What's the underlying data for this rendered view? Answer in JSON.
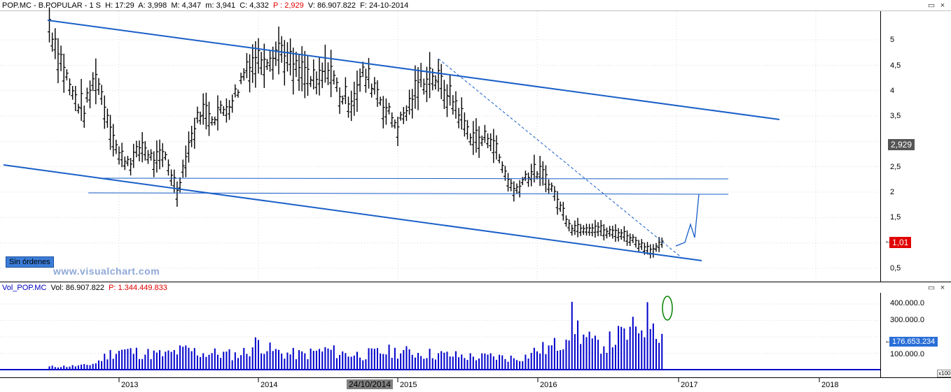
{
  "header": {
    "symbol": "POP.MC - B.POPULAR - 1 S",
    "h": "H: 17:29",
    "a": "A: 3,998",
    "m": "M: 4,347",
    "mn": "m: 3,941",
    "c": "C: 4,332",
    "p": "P : 2,929",
    "v": "V: 86.907.822",
    "f": "F: 24-10-2014"
  },
  "vol_header": {
    "name": "Vol_POP.MC",
    "vol": "Vol: 86.907.822",
    "p": "P: 1.344.449.833"
  },
  "window_controls": {
    "restore": "▭",
    "close": "×"
  },
  "price_axis": [
    "5",
    "4,5",
    "4",
    "3,5",
    "2,5",
    "2",
    "1,5",
    "0,5"
  ],
  "price_badges": {
    "current": "2,929",
    "last": "1,01"
  },
  "vol_axis": [
    "400.000.0",
    "300.000.0",
    "100.000.0"
  ],
  "vol_badge": "176.653.234",
  "x_labels": [
    "2013",
    "2014",
    "2015",
    "2016",
    "2017",
    "2018"
  ],
  "date_marker": "24/10/2014",
  "scale_tag": "x100",
  "orders_button": "Sin órdenes",
  "watermark": "www.visualchart.com",
  "icons": [
    "restore-icon",
    "close-icon",
    "arrow-left-icon"
  ],
  "colors": {
    "price": "#000000",
    "trendlines": "#1a5fc8",
    "volume": "#0000cc",
    "highlight": "#008000",
    "badge_dark": "#555555",
    "badge_red": "#e00000",
    "badge_blue": "#2a6fd8"
  },
  "chart_data": [
    {
      "type": "bar",
      "style": "ohlc",
      "title": "POP.MC - B.POPULAR - 1 S",
      "x": [
        "2012-07",
        "2012-08",
        "2012-09",
        "2012-10",
        "2012-11",
        "2012-12",
        "2013-01",
        "2013-02",
        "2013-03",
        "2013-04",
        "2013-05",
        "2013-06",
        "2013-07",
        "2013-08",
        "2013-09",
        "2013-10",
        "2013-11",
        "2013-12",
        "2014-01",
        "2014-02",
        "2014-03",
        "2014-04",
        "2014-05",
        "2014-06",
        "2014-07",
        "2014-08",
        "2014-09",
        "2014-10",
        "2014-11",
        "2014-12",
        "2015-01",
        "2015-02",
        "2015-03",
        "2015-04",
        "2015-05",
        "2015-06",
        "2015-07",
        "2015-08",
        "2015-09",
        "2015-10",
        "2015-11",
        "2015-12",
        "2016-01",
        "2016-02",
        "2016-03",
        "2016-04",
        "2016-05",
        "2016-06",
        "2016-07",
        "2016-08",
        "2016-09",
        "2016-10",
        "2016-11",
        "2016-12"
      ],
      "values": [
        5.3,
        4.6,
        3.9,
        3.6,
        4.3,
        3.5,
        2.7,
        2.6,
        2.9,
        2.6,
        2.7,
        2.0,
        2.9,
        3.6,
        3.5,
        3.6,
        3.9,
        4.5,
        4.6,
        4.7,
        4.8,
        4.4,
        4.3,
        4.1,
        4.5,
        3.9,
        3.8,
        4.3,
        4.1,
        3.6,
        3.3,
        3.7,
        4.2,
        4.3,
        4.0,
        3.7,
        3.2,
        3.0,
        3.1,
        2.5,
        2.0,
        2.3,
        2.4,
        2.2,
        1.7,
        1.3,
        1.3,
        1.3,
        1.2,
        1.2,
        1.1,
        0.95,
        0.85,
        1.01
      ],
      "ylim": [
        0.3,
        5.6
      ],
      "scale": "linear",
      "grid": false
    },
    {
      "type": "bar",
      "title": "Vol_POP.MC",
      "x": [
        "2012-07",
        "2012-08",
        "2012-09",
        "2012-10",
        "2012-11",
        "2012-12",
        "2013-01",
        "2013-02",
        "2013-03",
        "2013-04",
        "2013-05",
        "2013-06",
        "2013-07",
        "2013-08",
        "2013-09",
        "2013-10",
        "2013-11",
        "2013-12",
        "2014-01",
        "2014-02",
        "2014-03",
        "2014-04",
        "2014-05",
        "2014-06",
        "2014-07",
        "2014-08",
        "2014-09",
        "2014-10",
        "2014-11",
        "2014-12",
        "2015-01",
        "2015-02",
        "2015-03",
        "2015-04",
        "2015-05",
        "2015-06",
        "2015-07",
        "2015-08",
        "2015-09",
        "2015-10",
        "2015-11",
        "2015-12",
        "2016-01",
        "2016-02",
        "2016-03",
        "2016-04",
        "2016-05",
        "2016-06",
        "2016-07",
        "2016-08",
        "2016-09",
        "2016-10",
        "2016-11",
        "2016-12"
      ],
      "values": [
        18000,
        20000,
        22000,
        25000,
        40000,
        90000,
        120000,
        110000,
        100000,
        95000,
        90000,
        110000,
        120000,
        100000,
        100000,
        95000,
        90000,
        110000,
        170000,
        120000,
        100000,
        95000,
        90000,
        110000,
        120000,
        100000,
        95000,
        90000,
        100000,
        110000,
        110000,
        105000,
        100000,
        95000,
        90000,
        85000,
        80000,
        75000,
        80000,
        75000,
        70000,
        80000,
        120000,
        130000,
        160000,
        300000,
        200000,
        150000,
        160000,
        200000,
        220000,
        280000,
        330000,
        150000
      ],
      "ylim": [
        0,
        450000
      ],
      "grid": false
    }
  ]
}
